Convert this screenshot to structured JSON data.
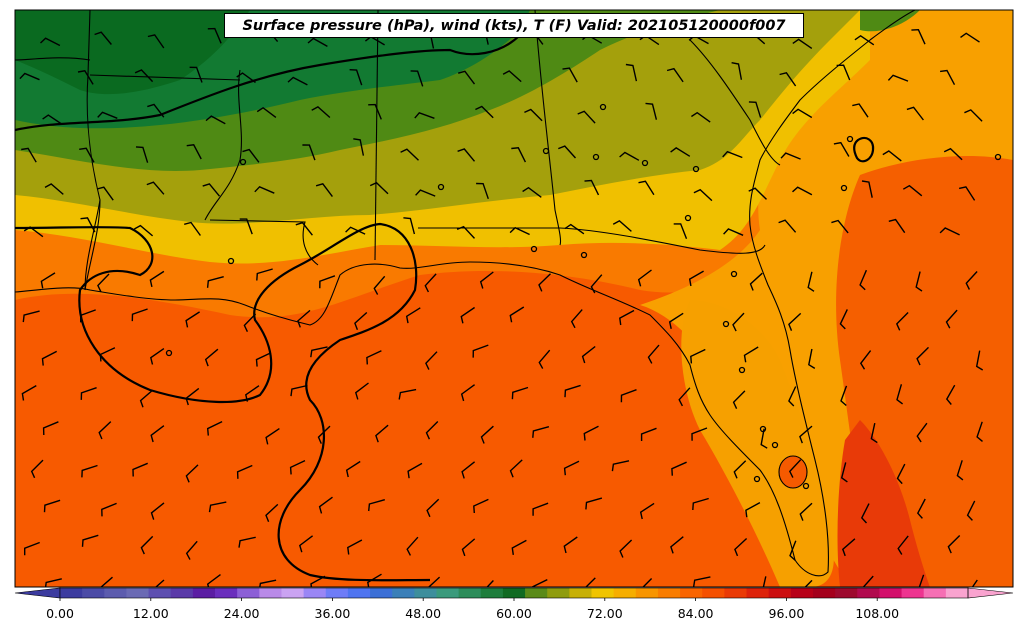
{
  "title": "Surface pressure (hPa), wind (kts), T (F) Valid: 202105120000f007",
  "colorbar": {
    "ticks": [
      "0.00",
      "12.00",
      "24.00",
      "36.00",
      "48.00",
      "60.00",
      "72.00",
      "84.00",
      "96.00",
      "108.00"
    ],
    "colors": [
      "#3b3b9f",
      "#4b4ba6",
      "#5c5cae",
      "#6a6ab4",
      "#5d4fb0",
      "#5a3aa8",
      "#5b1ea3",
      "#6a2ebd",
      "#8c5fd6",
      "#b98ae8",
      "#caa3f2",
      "#9a86f5",
      "#6e7cf7",
      "#4f74f0",
      "#3b6fd6",
      "#3a7fb8",
      "#3d8e9c",
      "#3a9a7c",
      "#2c8c5a",
      "#1e7d3c",
      "#106a22",
      "#5a8a18",
      "#8f9c0e",
      "#c7b006",
      "#f0c400",
      "#f6ae00",
      "#f89500",
      "#f97d00",
      "#f96400",
      "#f55000",
      "#ea3a05",
      "#dd220a",
      "#cc0e10",
      "#b70018",
      "#a4001c",
      "#9d0a2e",
      "#b10a4e",
      "#d30f6b",
      "#ee3490",
      "#f66fb4",
      "#f9a3cf"
    ],
    "min": 0,
    "max": 120
  }
}
